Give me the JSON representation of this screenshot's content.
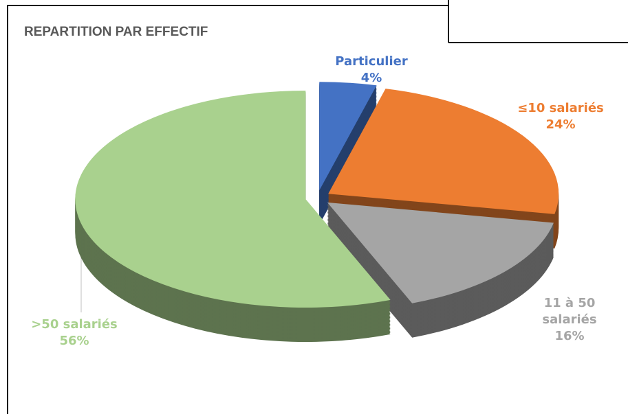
{
  "chart_data": {
    "type": "pie",
    "title": "REPARTITION PAR EFFECTIF",
    "categories": [
      "Particulier",
      "≤10 salariés",
      "11 à 50 salariés",
      ">50 salariés"
    ],
    "values": [
      4,
      24,
      16,
      56
    ],
    "value_labels": [
      "4%",
      "24%",
      "16%",
      "56%"
    ],
    "colors": [
      "#4472c4",
      "#ed7d31",
      "#a5a5a5",
      "#a9d18e"
    ]
  }
}
